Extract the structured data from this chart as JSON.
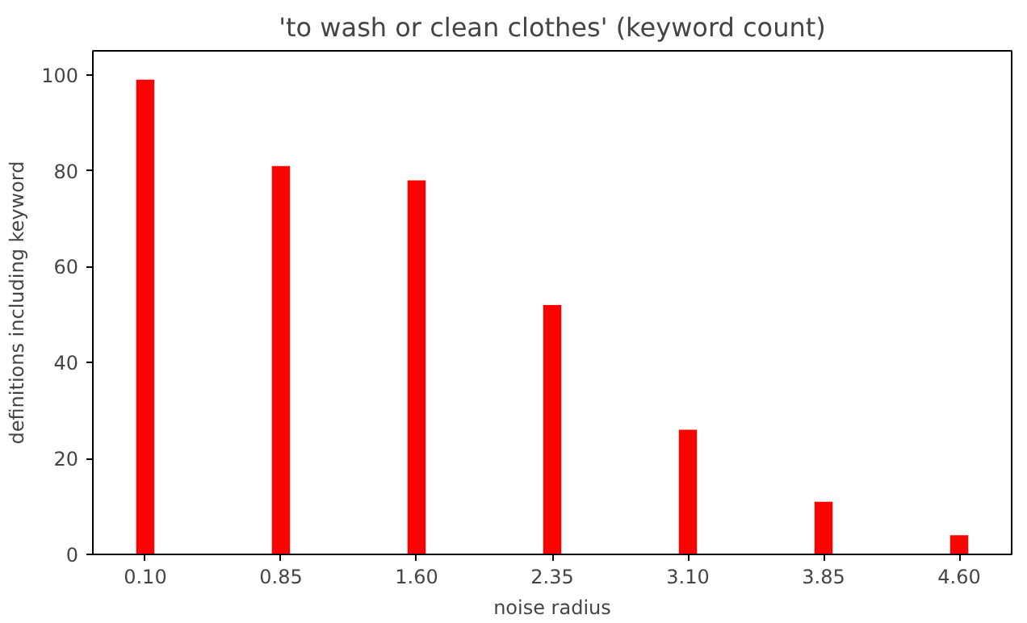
{
  "chart_data": {
    "type": "bar",
    "title": "'to wash or clean clothes' (keyword count)",
    "xlabel": "noise radius",
    "ylabel": "definitions including keyword",
    "x": [
      0.1,
      0.85,
      1.6,
      2.35,
      3.1,
      3.85,
      4.6
    ],
    "values": [
      99,
      81,
      78,
      52,
      26,
      11,
      4
    ],
    "color": "#ff0000",
    "xlim": [
      -0.19,
      4.89
    ],
    "xticks": [
      {
        "value": 0.1,
        "label": "0.10"
      },
      {
        "value": 0.85,
        "label": "0.85"
      },
      {
        "value": 1.6,
        "label": "1.60"
      },
      {
        "value": 2.35,
        "label": "2.35"
      },
      {
        "value": 3.1,
        "label": "3.10"
      },
      {
        "value": 3.85,
        "label": "3.85"
      },
      {
        "value": 4.6,
        "label": "4.60"
      }
    ],
    "ylim": [
      0,
      105
    ],
    "yticks": [
      0,
      20,
      40,
      60,
      80,
      100
    ],
    "grid": false
  }
}
